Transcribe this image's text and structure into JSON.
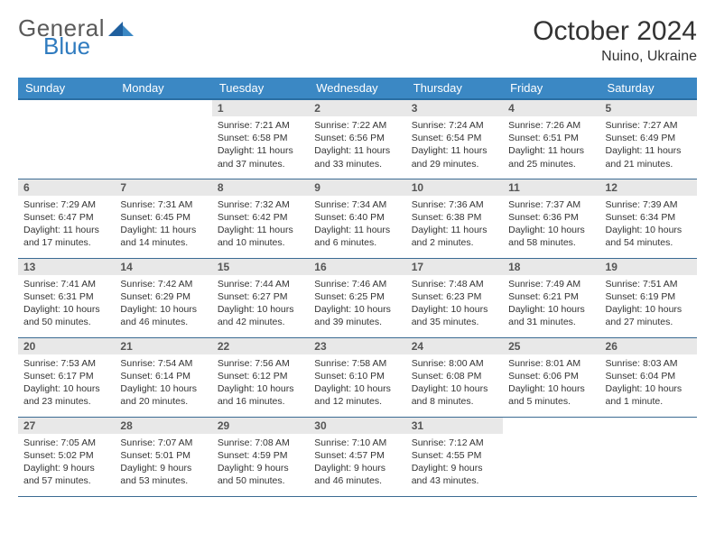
{
  "header": {
    "logo_general": "General",
    "logo_blue": "Blue",
    "month_title": "October 2024",
    "location": "Nuino, Ukraine"
  },
  "style": {
    "header_bg": "#3b88c4",
    "header_text": "#ffffff",
    "daynum_bg": "#e8e8e8",
    "daynum_text": "#555555",
    "body_text": "#333333",
    "row_border": "#3b6b93",
    "logo_gray": "#5a5a5a",
    "logo_blue": "#2f7bbf",
    "page_bg": "#ffffff",
    "title_fontsize": 30,
    "location_fontsize": 16,
    "weekday_fontsize": 13,
    "daynum_fontsize": 12,
    "cell_fontsize": 10.5
  },
  "weekdays": [
    "Sunday",
    "Monday",
    "Tuesday",
    "Wednesday",
    "Thursday",
    "Friday",
    "Saturday"
  ],
  "weeks": [
    [
      null,
      null,
      {
        "n": "1",
        "sr": "Sunrise: 7:21 AM",
        "ss": "Sunset: 6:58 PM",
        "dl": "Daylight: 11 hours and 37 minutes."
      },
      {
        "n": "2",
        "sr": "Sunrise: 7:22 AM",
        "ss": "Sunset: 6:56 PM",
        "dl": "Daylight: 11 hours and 33 minutes."
      },
      {
        "n": "3",
        "sr": "Sunrise: 7:24 AM",
        "ss": "Sunset: 6:54 PM",
        "dl": "Daylight: 11 hours and 29 minutes."
      },
      {
        "n": "4",
        "sr": "Sunrise: 7:26 AM",
        "ss": "Sunset: 6:51 PM",
        "dl": "Daylight: 11 hours and 25 minutes."
      },
      {
        "n": "5",
        "sr": "Sunrise: 7:27 AM",
        "ss": "Sunset: 6:49 PM",
        "dl": "Daylight: 11 hours and 21 minutes."
      }
    ],
    [
      {
        "n": "6",
        "sr": "Sunrise: 7:29 AM",
        "ss": "Sunset: 6:47 PM",
        "dl": "Daylight: 11 hours and 17 minutes."
      },
      {
        "n": "7",
        "sr": "Sunrise: 7:31 AM",
        "ss": "Sunset: 6:45 PM",
        "dl": "Daylight: 11 hours and 14 minutes."
      },
      {
        "n": "8",
        "sr": "Sunrise: 7:32 AM",
        "ss": "Sunset: 6:42 PM",
        "dl": "Daylight: 11 hours and 10 minutes."
      },
      {
        "n": "9",
        "sr": "Sunrise: 7:34 AM",
        "ss": "Sunset: 6:40 PM",
        "dl": "Daylight: 11 hours and 6 minutes."
      },
      {
        "n": "10",
        "sr": "Sunrise: 7:36 AM",
        "ss": "Sunset: 6:38 PM",
        "dl": "Daylight: 11 hours and 2 minutes."
      },
      {
        "n": "11",
        "sr": "Sunrise: 7:37 AM",
        "ss": "Sunset: 6:36 PM",
        "dl": "Daylight: 10 hours and 58 minutes."
      },
      {
        "n": "12",
        "sr": "Sunrise: 7:39 AM",
        "ss": "Sunset: 6:34 PM",
        "dl": "Daylight: 10 hours and 54 minutes."
      }
    ],
    [
      {
        "n": "13",
        "sr": "Sunrise: 7:41 AM",
        "ss": "Sunset: 6:31 PM",
        "dl": "Daylight: 10 hours and 50 minutes."
      },
      {
        "n": "14",
        "sr": "Sunrise: 7:42 AM",
        "ss": "Sunset: 6:29 PM",
        "dl": "Daylight: 10 hours and 46 minutes."
      },
      {
        "n": "15",
        "sr": "Sunrise: 7:44 AM",
        "ss": "Sunset: 6:27 PM",
        "dl": "Daylight: 10 hours and 42 minutes."
      },
      {
        "n": "16",
        "sr": "Sunrise: 7:46 AM",
        "ss": "Sunset: 6:25 PM",
        "dl": "Daylight: 10 hours and 39 minutes."
      },
      {
        "n": "17",
        "sr": "Sunrise: 7:48 AM",
        "ss": "Sunset: 6:23 PM",
        "dl": "Daylight: 10 hours and 35 minutes."
      },
      {
        "n": "18",
        "sr": "Sunrise: 7:49 AM",
        "ss": "Sunset: 6:21 PM",
        "dl": "Daylight: 10 hours and 31 minutes."
      },
      {
        "n": "19",
        "sr": "Sunrise: 7:51 AM",
        "ss": "Sunset: 6:19 PM",
        "dl": "Daylight: 10 hours and 27 minutes."
      }
    ],
    [
      {
        "n": "20",
        "sr": "Sunrise: 7:53 AM",
        "ss": "Sunset: 6:17 PM",
        "dl": "Daylight: 10 hours and 23 minutes."
      },
      {
        "n": "21",
        "sr": "Sunrise: 7:54 AM",
        "ss": "Sunset: 6:14 PM",
        "dl": "Daylight: 10 hours and 20 minutes."
      },
      {
        "n": "22",
        "sr": "Sunrise: 7:56 AM",
        "ss": "Sunset: 6:12 PM",
        "dl": "Daylight: 10 hours and 16 minutes."
      },
      {
        "n": "23",
        "sr": "Sunrise: 7:58 AM",
        "ss": "Sunset: 6:10 PM",
        "dl": "Daylight: 10 hours and 12 minutes."
      },
      {
        "n": "24",
        "sr": "Sunrise: 8:00 AM",
        "ss": "Sunset: 6:08 PM",
        "dl": "Daylight: 10 hours and 8 minutes."
      },
      {
        "n": "25",
        "sr": "Sunrise: 8:01 AM",
        "ss": "Sunset: 6:06 PM",
        "dl": "Daylight: 10 hours and 5 minutes."
      },
      {
        "n": "26",
        "sr": "Sunrise: 8:03 AM",
        "ss": "Sunset: 6:04 PM",
        "dl": "Daylight: 10 hours and 1 minute."
      }
    ],
    [
      {
        "n": "27",
        "sr": "Sunrise: 7:05 AM",
        "ss": "Sunset: 5:02 PM",
        "dl": "Daylight: 9 hours and 57 minutes."
      },
      {
        "n": "28",
        "sr": "Sunrise: 7:07 AM",
        "ss": "Sunset: 5:01 PM",
        "dl": "Daylight: 9 hours and 53 minutes."
      },
      {
        "n": "29",
        "sr": "Sunrise: 7:08 AM",
        "ss": "Sunset: 4:59 PM",
        "dl": "Daylight: 9 hours and 50 minutes."
      },
      {
        "n": "30",
        "sr": "Sunrise: 7:10 AM",
        "ss": "Sunset: 4:57 PM",
        "dl": "Daylight: 9 hours and 46 minutes."
      },
      {
        "n": "31",
        "sr": "Sunrise: 7:12 AM",
        "ss": "Sunset: 4:55 PM",
        "dl": "Daylight: 9 hours and 43 minutes."
      },
      null,
      null
    ]
  ]
}
